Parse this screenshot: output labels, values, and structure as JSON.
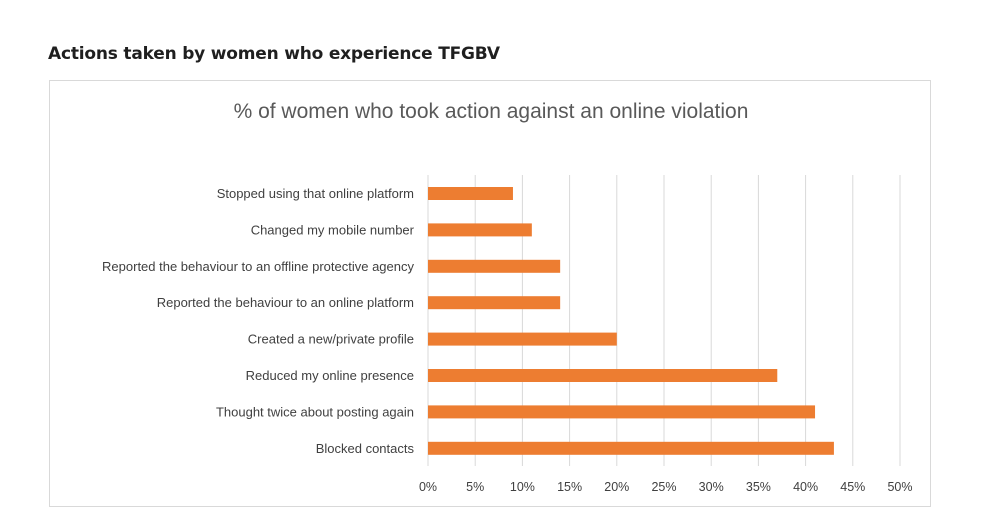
{
  "heading": "Actions taken by women who experience TFGBV",
  "chart_data": {
    "type": "bar",
    "orientation": "horizontal",
    "title": "% of women who took action against an online violation",
    "categories": [
      "Stopped using that online platform",
      "Changed my mobile number",
      "Reported the behaviour to an offline protective agency",
      "Reported the behaviour to an online platform",
      "Created a new/private profile",
      "Reduced my online presence",
      "Thought twice about posting again",
      "Blocked contacts"
    ],
    "values": [
      9,
      11,
      14,
      14,
      20,
      37,
      41,
      43
    ],
    "xlim": [
      0,
      50
    ],
    "x_ticks": [
      0,
      5,
      10,
      15,
      20,
      25,
      30,
      35,
      40,
      45,
      50
    ],
    "x_tick_labels": [
      "0%",
      "5%",
      "10%",
      "15%",
      "20%",
      "25%",
      "30%",
      "35%",
      "40%",
      "45%",
      "50%"
    ],
    "bar_color": "#ED7D31",
    "grid": true,
    "legend": "none"
  }
}
